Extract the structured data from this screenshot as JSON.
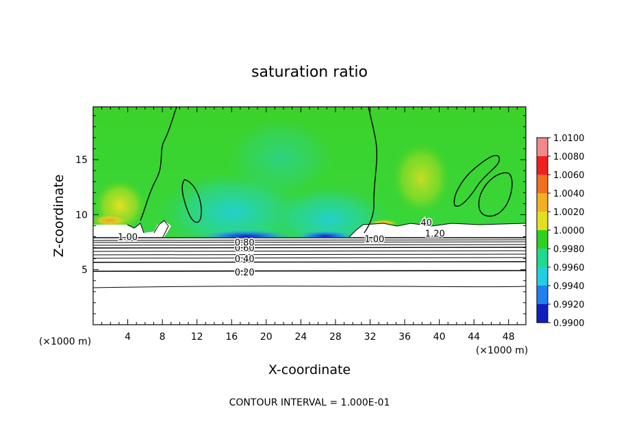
{
  "chart_data": {
    "type": "heatmap",
    "title": "saturation ratio",
    "xlabel": "X-coordinate",
    "ylabel": "Z-coordinate",
    "x_units": "(×1000 m)",
    "y_units": "(×1000 m)",
    "xlim": [
      0,
      50
    ],
    "ylim": [
      0,
      19.8
    ],
    "x_ticks": [
      4,
      8,
      12,
      16,
      20,
      24,
      28,
      32,
      36,
      40,
      44,
      48
    ],
    "y_ticks": [
      5,
      10,
      15
    ],
    "x_tick_labels": [
      "4",
      "8",
      "12",
      "16",
      "20",
      "24",
      "28",
      "32",
      "36",
      "40",
      "44",
      "48"
    ],
    "y_tick_labels": [
      "5",
      "10",
      "15"
    ],
    "colorbar": {
      "levels": [
        1.01,
        1.008,
        1.006,
        1.004,
        1.002,
        1.0,
        0.998,
        0.996,
        0.994,
        0.992,
        0.99
      ],
      "labels": [
        "1.0100",
        "1.0080",
        "1.0060",
        "1.0040",
        "1.0020",
        "1.0000",
        "0.9980",
        "0.9960",
        "0.9940",
        "0.9920",
        "0.9900"
      ],
      "colors": [
        "#f08a8a",
        "#f02020",
        "#f07020",
        "#f0b020",
        "#e0e020",
        "#30d020",
        "#20d890",
        "#20d0e0",
        "#2080f0",
        "#1020c0",
        "#8020c0"
      ]
    },
    "contour_interval_text": "CONTOUR INTERVAL = 1.000E-01",
    "contour_labels": [
      {
        "text": "0.20",
        "x": 17.5,
        "y": 4.8
      },
      {
        "text": "0.40",
        "x": 17.5,
        "y": 6.0
      },
      {
        "text": "0.60",
        "x": 17.5,
        "y": 7.0
      },
      {
        "text": "0.80",
        "x": 17.5,
        "y": 7.5
      },
      {
        "text": "1.00",
        "x": 32.5,
        "y": 7.8
      },
      {
        "text": "1.20",
        "x": 39.5,
        "y": 8.3
      },
      {
        "text": "1.00",
        "x": 4.0,
        "y": 8.0
      },
      {
        "text": "40",
        "x": 38.5,
        "y": 9.3
      }
    ]
  }
}
